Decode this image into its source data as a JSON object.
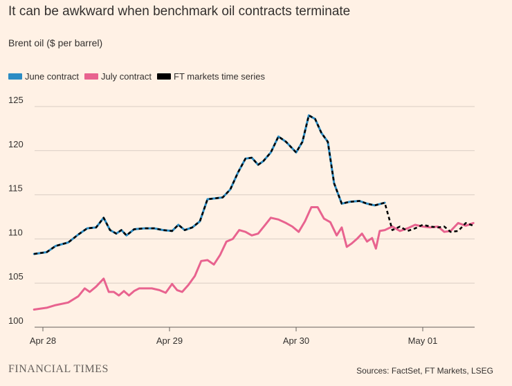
{
  "title": "It can be awkward when benchmark oil contracts terminate",
  "subtitle": "Brent oil ($ per barrel)",
  "footer": {
    "logo": "FINANCIAL TIMES",
    "source": "Sources: FactSet, FT Markets, LSEG"
  },
  "chart_data": {
    "type": "line",
    "title": "It can be awkward when benchmark oil contracts terminate",
    "ylabel": "Brent oil ($ per barrel)",
    "ylim": [
      100,
      125
    ],
    "yticks": [
      100,
      105,
      110,
      115,
      120,
      125
    ],
    "xlim": [
      -0.08,
      3.4
    ],
    "xticks": [
      {
        "value": 0,
        "label": "Apr 28"
      },
      {
        "value": 1,
        "label": "Apr 29"
      },
      {
        "value": 2,
        "label": "Apr 30"
      },
      {
        "value": 3,
        "label": "May 01"
      }
    ],
    "grid": true,
    "legend_position": "top-left",
    "series": [
      {
        "name": "June contract",
        "color": "#2b8cc4",
        "x": [
          -0.07,
          0.03,
          0.1,
          0.2,
          0.28,
          0.35,
          0.42,
          0.48,
          0.53,
          0.58,
          0.62,
          0.66,
          0.72,
          0.8,
          0.88,
          0.95,
          1.02,
          1.07,
          1.12,
          1.18,
          1.24,
          1.3,
          1.36,
          1.42,
          1.48,
          1.54,
          1.6,
          1.65,
          1.7,
          1.74,
          1.8,
          1.86,
          1.92,
          2.0,
          2.05,
          2.1,
          2.15,
          2.2,
          2.25,
          2.3,
          2.36,
          2.42,
          2.5,
          2.56,
          2.62,
          2.7
        ],
        "y": [
          108.3,
          108.5,
          109.2,
          109.6,
          110.5,
          111.2,
          111.3,
          112.4,
          111.0,
          110.6,
          111.0,
          110.4,
          111.1,
          111.2,
          111.2,
          111.0,
          110.9,
          111.6,
          111.0,
          111.3,
          112.0,
          114.5,
          114.6,
          114.7,
          115.6,
          117.5,
          119.1,
          119.2,
          118.4,
          118.8,
          119.8,
          121.6,
          121.0,
          119.8,
          121.0,
          124.0,
          123.6,
          122.0,
          121.0,
          116.3,
          114.0,
          114.2,
          114.3,
          114.0,
          113.8,
          114.1
        ]
      },
      {
        "name": "July contract",
        "color": "#e8638f",
        "x": [
          -0.07,
          0.03,
          0.1,
          0.2,
          0.28,
          0.33,
          0.37,
          0.42,
          0.48,
          0.52,
          0.56,
          0.6,
          0.64,
          0.68,
          0.72,
          0.76,
          0.8,
          0.86,
          0.92,
          0.97,
          1.02,
          1.06,
          1.1,
          1.15,
          1.2,
          1.25,
          1.3,
          1.35,
          1.4,
          1.45,
          1.5,
          1.55,
          1.6,
          1.65,
          1.7,
          1.75,
          1.8,
          1.86,
          1.92,
          1.97,
          2.02,
          2.07,
          2.12,
          2.17,
          2.22,
          2.27,
          2.32,
          2.36,
          2.4,
          2.44,
          2.48,
          2.52,
          2.56,
          2.6,
          2.63,
          2.66,
          2.7,
          2.76,
          2.82,
          2.88,
          2.94,
          3.0,
          3.06,
          3.12,
          3.17,
          3.22,
          3.28,
          3.34,
          3.4
        ],
        "y": [
          102.0,
          102.2,
          102.5,
          102.8,
          103.5,
          104.4,
          104.0,
          104.6,
          105.5,
          104.0,
          104.0,
          103.6,
          104.1,
          103.6,
          104.1,
          104.4,
          104.4,
          104.4,
          104.2,
          103.9,
          104.9,
          104.2,
          104.0,
          104.8,
          105.8,
          107.5,
          107.6,
          107.1,
          108.2,
          109.7,
          110.0,
          111.0,
          110.8,
          110.4,
          110.6,
          111.5,
          112.4,
          112.2,
          111.8,
          111.4,
          110.8,
          112.0,
          113.6,
          113.6,
          112.3,
          111.9,
          110.4,
          111.3,
          109.1,
          109.5,
          110.0,
          110.6,
          109.7,
          110.1,
          108.9,
          110.9,
          111.0,
          111.4,
          110.9,
          111.2,
          111.6,
          111.4,
          111.3,
          111.4,
          110.8,
          110.9,
          111.8,
          111.5,
          111.8
        ]
      },
      {
        "name": "FT markets time series",
        "color": "#000000",
        "dashed": true,
        "x": [
          -0.07,
          0.03,
          0.1,
          0.2,
          0.28,
          0.35,
          0.42,
          0.48,
          0.53,
          0.58,
          0.62,
          0.66,
          0.72,
          0.8,
          0.88,
          0.95,
          1.02,
          1.07,
          1.12,
          1.18,
          1.24,
          1.3,
          1.36,
          1.42,
          1.48,
          1.54,
          1.6,
          1.65,
          1.7,
          1.74,
          1.8,
          1.86,
          1.92,
          2.0,
          2.05,
          2.1,
          2.15,
          2.2,
          2.25,
          2.3,
          2.36,
          2.42,
          2.5,
          2.56,
          2.62,
          2.7,
          2.76,
          2.82,
          2.88,
          2.94,
          3.0,
          3.06,
          3.12,
          3.17,
          3.22,
          3.28,
          3.34,
          3.4
        ],
        "y": [
          108.3,
          108.5,
          109.2,
          109.6,
          110.5,
          111.2,
          111.3,
          112.4,
          111.0,
          110.6,
          111.0,
          110.4,
          111.1,
          111.2,
          111.2,
          111.0,
          110.9,
          111.6,
          111.0,
          111.3,
          112.0,
          114.5,
          114.6,
          114.7,
          115.6,
          117.5,
          119.1,
          119.2,
          118.4,
          118.8,
          119.8,
          121.6,
          121.0,
          119.8,
          121.0,
          124.0,
          123.6,
          122.0,
          121.0,
          116.3,
          114.0,
          114.2,
          114.3,
          114.0,
          113.8,
          114.1,
          111.0,
          111.4,
          110.9,
          111.2,
          111.6,
          111.4,
          111.3,
          111.4,
          110.8,
          110.9,
          111.8,
          111.5
        ]
      }
    ]
  }
}
